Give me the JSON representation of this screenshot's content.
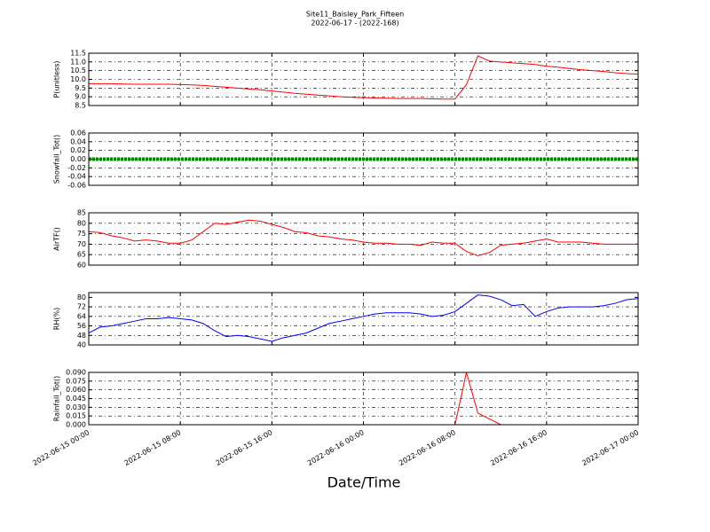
{
  "title": "Site11_Baisley_Park_Fifteen",
  "subtitle": "2022-06-17 - (2022-168)",
  "xlabel": "Date/Time",
  "x": [
    "2022-06-15 00:00",
    "2022-06-15 01:00",
    "2022-06-15 02:00",
    "2022-06-15 03:00",
    "2022-06-15 04:00",
    "2022-06-15 05:00",
    "2022-06-15 06:00",
    "2022-06-15 07:00",
    "2022-06-15 08:00",
    "2022-06-15 09:00",
    "2022-06-15 10:00",
    "2022-06-15 11:00",
    "2022-06-15 12:00",
    "2022-06-15 13:00",
    "2022-06-15 14:00",
    "2022-06-15 15:00",
    "2022-06-15 16:00",
    "2022-06-15 17:00",
    "2022-06-15 18:00",
    "2022-06-15 19:00",
    "2022-06-15 20:00",
    "2022-06-15 21:00",
    "2022-06-15 22:00",
    "2022-06-15 23:00",
    "2022-06-16 00:00",
    "2022-06-16 01:00",
    "2022-06-16 02:00",
    "2022-06-16 03:00",
    "2022-06-16 04:00",
    "2022-06-16 05:00",
    "2022-06-16 06:00",
    "2022-06-16 07:00",
    "2022-06-16 08:00",
    "2022-06-16 09:00",
    "2022-06-16 10:00",
    "2022-06-16 11:00",
    "2022-06-16 12:00",
    "2022-06-16 13:00",
    "2022-06-16 14:00",
    "2022-06-16 15:00",
    "2022-06-16 16:00",
    "2022-06-16 17:00",
    "2022-06-16 18:00",
    "2022-06-16 19:00",
    "2022-06-16 20:00",
    "2022-06-16 21:00",
    "2022-06-16 22:00",
    "2022-06-16 23:00",
    "2022-06-17 00:00"
  ],
  "xticks": [
    "2022-06-15 00:00",
    "2022-06-15 08:00",
    "2022-06-15 16:00",
    "2022-06-16 00:00",
    "2022-06-16 08:00",
    "2022-06-16 16:00",
    "2022-06-17 00:00"
  ],
  "chart_data": [
    {
      "type": "line",
      "ylabel": "P(unitless)",
      "color": "#ff0000",
      "grid": true,
      "ylim": [
        8.5,
        11.5
      ],
      "yticks": [
        8.5,
        {
          "value": 9,
          "label": "9.0"
        },
        9.5,
        {
          "value": 10,
          "label": "10.0"
        },
        10.5,
        {
          "value": 11,
          "label": "11.0"
        },
        11.5
      ],
      "values": [
        9.75,
        9.75,
        9.75,
        9.73,
        9.72,
        9.72,
        9.72,
        9.72,
        9.7,
        9.68,
        9.65,
        9.6,
        9.55,
        9.5,
        9.45,
        9.4,
        9.33,
        9.27,
        9.2,
        9.15,
        9.1,
        9.05,
        9.0,
        8.97,
        8.95,
        8.93,
        8.92,
        8.9,
        8.9,
        8.9,
        8.88,
        8.87,
        8.87,
        9.7,
        11.35,
        11.05,
        11.0,
        10.95,
        10.9,
        10.85,
        10.75,
        10.7,
        10.62,
        10.55,
        10.5,
        10.45,
        10.38,
        10.33,
        10.3
      ]
    },
    {
      "type": "dotline",
      "ylabel": "Snowfall_Tot()",
      "color": "#008000",
      "grid": true,
      "ylim": [
        -0.06,
        0.06
      ],
      "yticks": [
        -0.06,
        -0.04,
        -0.02,
        {
          "value": 0,
          "label": "0.00"
        },
        0.02,
        0.04,
        0.06
      ],
      "values": [
        0,
        0,
        0,
        0,
        0,
        0,
        0,
        0,
        0,
        0,
        0,
        0,
        0,
        0,
        0,
        0,
        0,
        0,
        0,
        0,
        0,
        0,
        0,
        0,
        0,
        0,
        0,
        0,
        0,
        0,
        0,
        0,
        0,
        0,
        0,
        0,
        0,
        0,
        0,
        0,
        0,
        0,
        0,
        0,
        0,
        0,
        0,
        0,
        0
      ]
    },
    {
      "type": "line",
      "ylabel": "AirTF()",
      "color": "#ff0000",
      "grid": true,
      "ylim": [
        60,
        85
      ],
      "yticks": [
        60,
        65,
        70,
        75,
        80,
        85
      ],
      "values": [
        76,
        75.5,
        74,
        73,
        71.5,
        72,
        71.5,
        70.5,
        70.5,
        72,
        76,
        80,
        79.5,
        80.5,
        81.5,
        81,
        79.5,
        78,
        76,
        75.5,
        74,
        73.5,
        72.5,
        72,
        71,
        70.5,
        70.5,
        70,
        70,
        69.5,
        71,
        70.5,
        70.5,
        66.5,
        64.5,
        66,
        69.5,
        70,
        70.5,
        71.5,
        72.5,
        71,
        71,
        71,
        70.5,
        70,
        70,
        70,
        70
      ]
    },
    {
      "type": "line",
      "ylabel": "RH(%)",
      "color": "#0000ff",
      "grid": true,
      "ylim": [
        40,
        84
      ],
      "yticks": [
        40,
        48,
        56,
        64,
        72,
        80
      ],
      "values": [
        50,
        55,
        56,
        58,
        60,
        62,
        62,
        63,
        62,
        61,
        58,
        52,
        47,
        48,
        47,
        45,
        43,
        46,
        48,
        50,
        54,
        58,
        60,
        62,
        64,
        66,
        67,
        67,
        67,
        66,
        64,
        65,
        68,
        75,
        82,
        81,
        78,
        73,
        74,
        64,
        68,
        71,
        72,
        72,
        72,
        73,
        75,
        78,
        79
      ]
    },
    {
      "type": "line",
      "ylabel": "Rainfall_Tot()",
      "color": "#ff0000",
      "grid": true,
      "ylim": [
        0,
        0.09
      ],
      "yticks": [
        {
          "value": 0,
          "label": "0.000"
        },
        0.015,
        {
          "value": 0.03,
          "label": "0.030"
        },
        0.045,
        {
          "value": 0.06,
          "label": "0.060"
        },
        0.075,
        {
          "value": 0.09,
          "label": "0.090"
        }
      ],
      "values": [
        0,
        0,
        0,
        0,
        0,
        0,
        0,
        0,
        0,
        0,
        0,
        0,
        0,
        0,
        0,
        0,
        0,
        0,
        0,
        0,
        0,
        0,
        0,
        0,
        0,
        0,
        0,
        0,
        0,
        0,
        0,
        0,
        0,
        0.09,
        0.02,
        0.01,
        0,
        0,
        0,
        0,
        0,
        0,
        0,
        0,
        0,
        0,
        0,
        0,
        0
      ]
    }
  ]
}
